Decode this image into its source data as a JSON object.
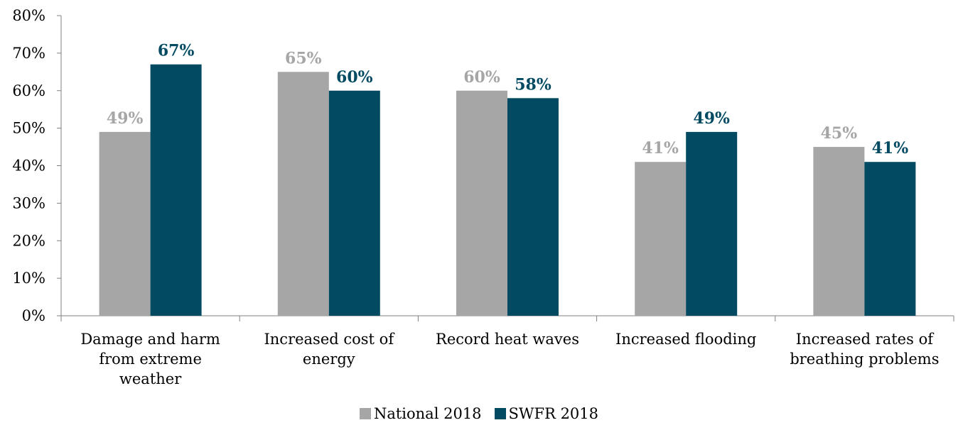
{
  "chart_data": {
    "type": "bar",
    "categories": [
      [
        "Damage and harm",
        "from extreme",
        "weather"
      ],
      [
        "Increased cost of",
        "energy"
      ],
      [
        "Record heat waves"
      ],
      [
        "Increased flooding"
      ],
      [
        "Increased rates of",
        "breathing problems"
      ]
    ],
    "series": [
      {
        "name": "National 2018",
        "color": "#a6a6a6",
        "values": [
          49,
          65,
          60,
          41,
          45
        ],
        "labels": [
          "49%",
          "65%",
          "60%",
          "41%",
          "45%"
        ]
      },
      {
        "name": "SWFR 2018",
        "color": "#024a62",
        "values": [
          67,
          60,
          58,
          49,
          41
        ],
        "labels": [
          "67%",
          "60%",
          "58%",
          "49%",
          "41%"
        ]
      }
    ],
    "ylim": [
      0,
      80
    ],
    "yticks": [
      0,
      10,
      20,
      30,
      40,
      50,
      60,
      70,
      80
    ],
    "ytick_labels": [
      "0%",
      "10%",
      "20%",
      "30%",
      "40%",
      "50%",
      "60%",
      "70%",
      "80%"
    ],
    "title": "",
    "xlabel": "",
    "ylabel": "",
    "grid": false,
    "legend_position": "bottom"
  }
}
